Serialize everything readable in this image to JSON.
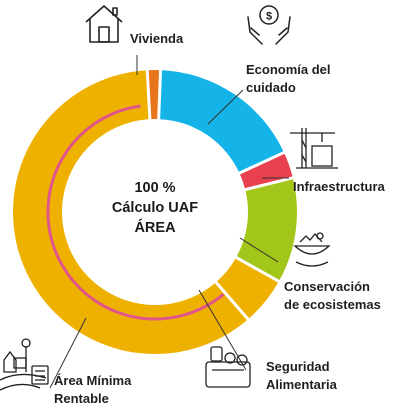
{
  "center": {
    "line1": "100 %",
    "line2": "Cálculo UAF",
    "line3": "ÁREA"
  },
  "chart_data": {
    "type": "donut",
    "title": "",
    "categories": [
      "Vivienda",
      "Economía del cuidado",
      "Infraestructura",
      "Conservación de ecosistemas",
      "Seguridad Alimentaria",
      "Área Mínima Rentable"
    ],
    "values": [
      1.5,
      17.5,
      3.0,
      12.0,
      5.5,
      60.5
    ],
    "colors": [
      "#e9741e",
      "#14b4e8",
      "#e8404e",
      "#a3c61a",
      "#efb100",
      "#efb100"
    ],
    "highlight_arc_color": "#e0568a",
    "separator_color": "#ffffff",
    "labels": {
      "vivienda": "Vivienda",
      "economia_1": "Economía del",
      "economia_2": "cuidado",
      "infraestructura": "Infraestructura",
      "conservacion_1": "Conservación",
      "conservacion_2": "de ecosistemas",
      "seguridad_1": "Seguridad",
      "seguridad_2": "Alimentaria",
      "area_1": "Área Mínima",
      "area_2": "Rentable"
    },
    "icons": [
      "house-icon",
      "hands-money-icon",
      "construction-crane-icon",
      "ecosystem-bowl-icon",
      "grocery-bag-icon",
      "farm-calculator-icon"
    ]
  }
}
